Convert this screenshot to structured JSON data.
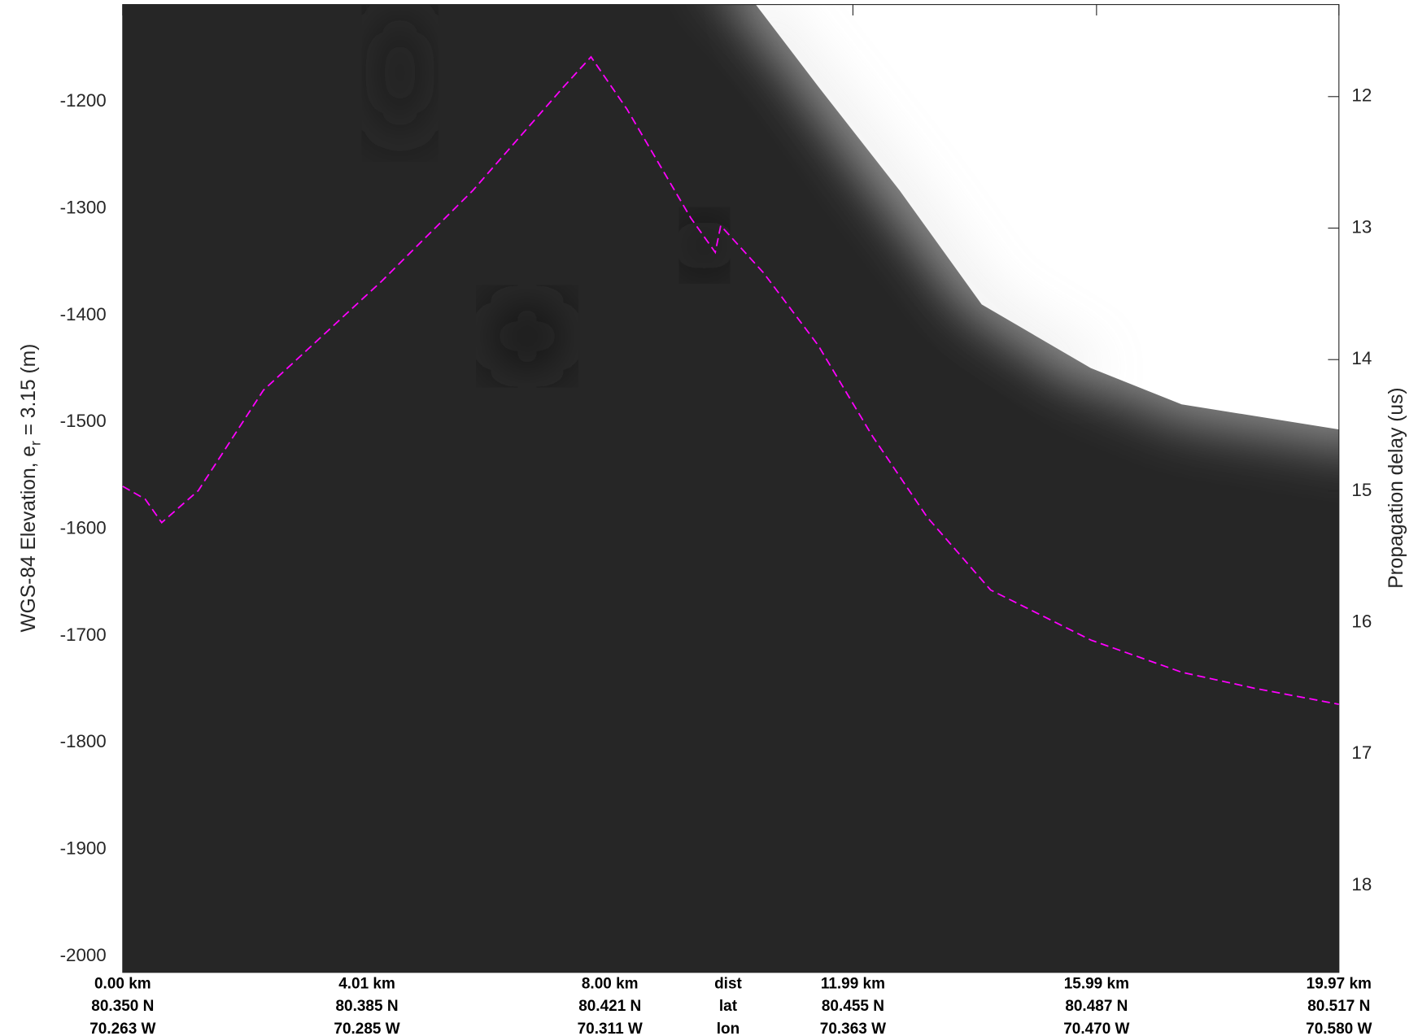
{
  "chart_data": {
    "type": "line",
    "ylabel": "WGS-84 Elevation, e",
    "ylabel_sub": "r",
    "ylabel_rest": "= 3.15 (m)",
    "y2label": "Propagation delay (us)",
    "x": [
      0,
      0.37,
      0.64,
      1.24,
      2.31,
      4.25,
      5.75,
      7.24,
      7.69,
      8.28,
      9.33,
      9.73,
      9.82,
      10.52,
      11.42,
      12.31,
      13.21,
      14.25,
      15.9,
      17.39,
      18.58,
      19.97
    ],
    "values": [
      -1560,
      -1572,
      -1594,
      -1564,
      -1470,
      -1368,
      -1283,
      -1186,
      -1158,
      -1207,
      -1309,
      -1341,
      -1316,
      -1360,
      -1428,
      -1513,
      -1589,
      -1657,
      -1704,
      -1734,
      -1749,
      -1764
    ],
    "color": "#ff00ff",
    "xlim": [
      0,
      19.97
    ],
    "xticks": [
      {
        "value": 0,
        "label": "0.00 km"
      },
      {
        "value": 4.01,
        "label": "4.01 km"
      },
      {
        "value": 8.0,
        "label": "8.00 km"
      },
      {
        "value": 11.99,
        "label": "11.99 km"
      },
      {
        "value": 15.99,
        "label": "15.99 km"
      },
      {
        "value": 19.97,
        "label": "19.97 km"
      }
    ],
    "lat_labels": [
      "80.350 N",
      "80.385 N",
      "80.421 N",
      "80.455 N",
      "80.487 N",
      "80.517 N"
    ],
    "lon_labels": [
      "70.263 W",
      "70.285 W",
      "70.311 W",
      "70.363 W",
      "70.470 W",
      "70.580 W"
    ],
    "row_names": [
      "dist",
      "lat",
      "lon"
    ],
    "ylim": [
      -2015,
      -1109
    ],
    "yticks": [
      -2000,
      -1900,
      -1800,
      -1700,
      -1600,
      -1500,
      -1400,
      -1300,
      -1200
    ],
    "y2lim": [
      18.66,
      11.3
    ],
    "y2ticks": [
      12,
      13,
      14,
      15,
      16,
      17,
      18
    ]
  }
}
